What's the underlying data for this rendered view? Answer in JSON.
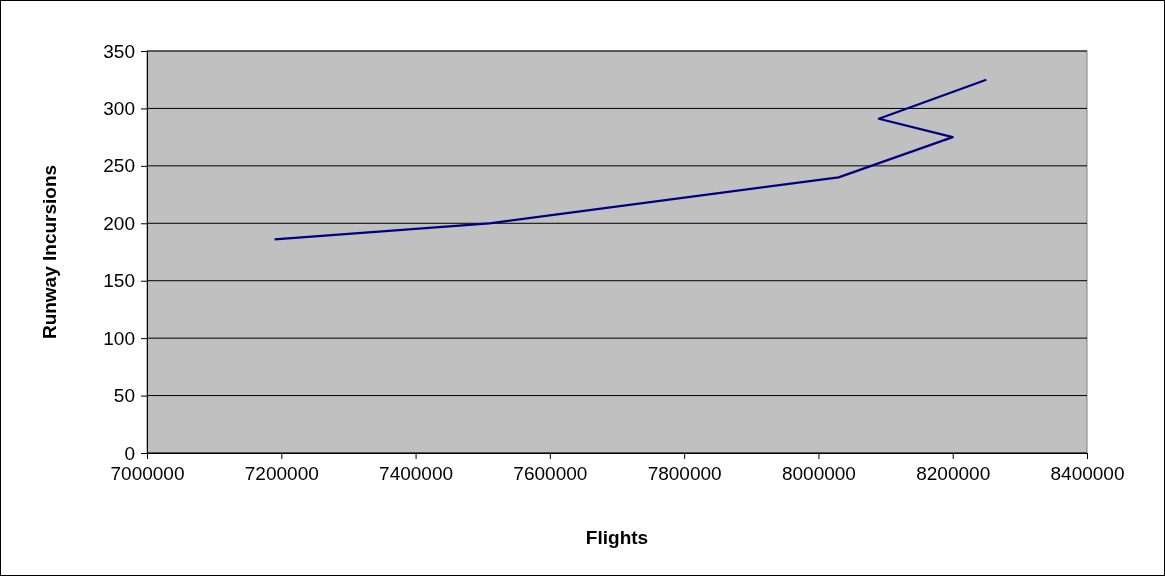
{
  "chart_data": {
    "type": "line",
    "xlabel": "Flights",
    "ylabel": "Runway Incursions",
    "x": [
      7190000,
      7510000,
      8030000,
      8200000,
      8090000,
      8250000
    ],
    "series": [
      {
        "color": "#000080",
        "values": [
          186,
          200,
          240,
          275,
          291,
          325
        ]
      }
    ],
    "xlim": [
      7000000,
      8400000
    ],
    "xticks": [
      7000000,
      7200000,
      7400000,
      7600000,
      7800000,
      8000000,
      8200000,
      8400000
    ],
    "ylim": [
      0,
      350
    ],
    "yticks": [
      0,
      50,
      100,
      150,
      200,
      250,
      300,
      350
    ],
    "grid": "y",
    "marker": "none",
    "line_style": "solid"
  }
}
